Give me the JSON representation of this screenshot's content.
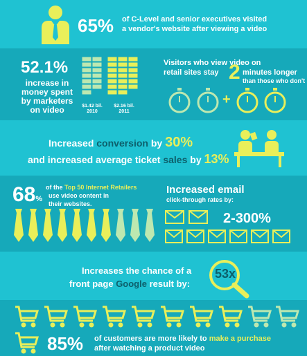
{
  "s1": {
    "pct": "65%",
    "line1": "of C-Level and senior executives visited",
    "line2": "a vendor's website after viewing a video"
  },
  "s2": {
    "pct": "52.1%",
    "desc": [
      "increase in",
      "money spent",
      "by marketers",
      "on video"
    ],
    "bar2010_value": "$1.42 bil.",
    "bar2010_year": "2010",
    "bar2011_value": "$2.16 bil.",
    "bar2011_year": "2011",
    "visitors_line1": "Visitors who view video on",
    "visitors_line2a": "retail sites stay",
    "visitors_num": "2",
    "visitors_line2b": "minutes longer",
    "visitors_line3": "than those who don't",
    "plus": "+"
  },
  "s3": {
    "line1a": "Increased",
    "line1b": "conversion",
    "line1c": "by",
    "line1num": "30%",
    "line2a": "and increased average ticket",
    "line2b": "sales",
    "line2c": "by",
    "line2num": "13%"
  },
  "s4": {
    "pct_num": "68",
    "pct_sym": "%",
    "line1a": "of the",
    "line1b": "Top 50 Internet Retailers",
    "line2": "use video content in",
    "line3": "their websites.",
    "email_title": "Increased email",
    "email_sub": "click-through rates by:",
    "email_range": "2-300%"
  },
  "s5": {
    "line1": "Increases the chance of a",
    "line2a": "front page",
    "line2b": "Google",
    "line2c": "result by:",
    "mult": "53x"
  },
  "s6": {
    "pct": "85%",
    "line1a": "of customers are more likely to",
    "line1b": "make a purchase",
    "line2": "after watching a product video"
  },
  "colors": {
    "accent": "#e9ef5a",
    "bg": "#17b3c4",
    "text": "#ffffff"
  }
}
